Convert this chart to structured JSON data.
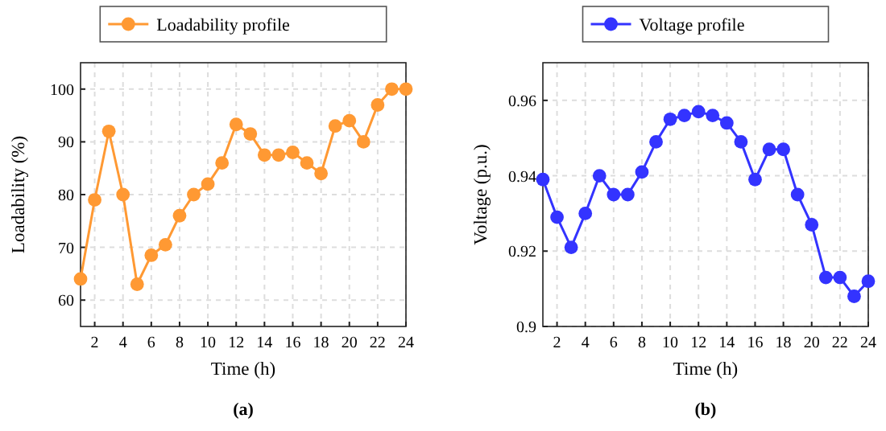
{
  "chart_data": [
    {
      "type": "line",
      "xlabel": "Time (h)",
      "ylabel": "Loadability (%)",
      "annotations": [
        "(a)"
      ],
      "x": [
        1,
        2,
        3,
        4,
        5,
        6,
        7,
        8,
        9,
        10,
        11,
        12,
        13,
        14,
        15,
        16,
        17,
        18,
        19,
        20,
        21,
        22,
        23,
        24
      ],
      "series": [
        {
          "name": "Loadability profile",
          "color": "#ff9933",
          "values": [
            64,
            79,
            92,
            80,
            63,
            68.5,
            70.5,
            76,
            80,
            82,
            86,
            93.3,
            91.5,
            87.5,
            87.5,
            88,
            86,
            84,
            93,
            94,
            90,
            97,
            100,
            100
          ]
        }
      ],
      "xlim": [
        1,
        24
      ],
      "xticks": [
        2,
        4,
        6,
        8,
        10,
        12,
        14,
        16,
        18,
        20,
        22,
        24
      ],
      "ylim": [
        55,
        105
      ],
      "yticks": [
        60,
        70,
        80,
        90,
        100
      ],
      "grid": true,
      "legend": "top",
      "marker": "circle",
      "line_style": "solid"
    },
    {
      "type": "line",
      "xlabel": "Time (h)",
      "ylabel": "Voltage (p.u.)",
      "annotations": [
        "(b)"
      ],
      "x": [
        1,
        2,
        3,
        4,
        5,
        6,
        7,
        8,
        9,
        10,
        11,
        12,
        13,
        14,
        15,
        16,
        17,
        18,
        19,
        20,
        21,
        22,
        23,
        24
      ],
      "series": [
        {
          "name": "Voltage profile",
          "color": "#3333ff",
          "values": [
            0.939,
            0.929,
            0.921,
            0.93,
            0.94,
            0.935,
            0.935,
            0.941,
            0.949,
            0.955,
            0.956,
            0.957,
            0.956,
            0.954,
            0.949,
            0.939,
            0.947,
            0.947,
            0.935,
            0.927,
            0.913,
            0.913,
            0.908,
            0.912
          ]
        }
      ],
      "xlim": [
        1,
        24
      ],
      "xticks": [
        2,
        4,
        6,
        8,
        10,
        12,
        14,
        16,
        18,
        20,
        22,
        24
      ],
      "ylim": [
        0.9,
        0.97
      ],
      "yticks": [
        {
          "value": 0.9,
          "label": "0.9"
        },
        0.92,
        0.94,
        0.96
      ],
      "grid": true,
      "legend": "top",
      "marker": "circle",
      "line_style": "solid"
    }
  ]
}
